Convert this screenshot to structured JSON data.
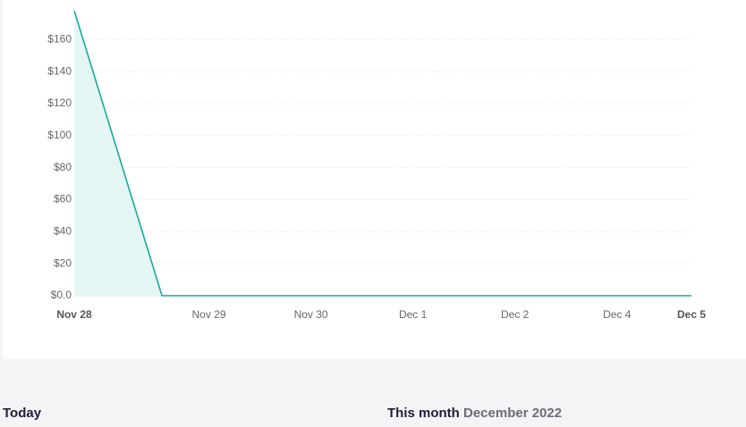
{
  "chart_data": {
    "type": "area",
    "x": [
      0,
      0.86,
      6.05
    ],
    "values": [
      178,
      0,
      0
    ],
    "color": "#17aa9c",
    "fill": "#e3f6f3",
    "xlim": [
      0,
      6.05
    ],
    "xticks": [
      {
        "value": 0,
        "label": "Nov 28"
      },
      {
        "value": 1.32,
        "label": "Nov 29"
      },
      {
        "value": 2.32,
        "label": "Nov 30"
      },
      {
        "value": 3.32,
        "label": "Dec 1"
      },
      {
        "value": 4.32,
        "label": "Dec 2"
      },
      {
        "value": 5.32,
        "label": "Dec 4"
      },
      {
        "value": 6.05,
        "label": "Dec 5"
      }
    ],
    "ylim": [
      0,
      178
    ],
    "yticks": [
      {
        "value": 0,
        "label": "$0.0"
      },
      {
        "value": 20,
        "label": "$20"
      },
      {
        "value": 40,
        "label": "$40"
      },
      {
        "value": 60,
        "label": "$60"
      },
      {
        "value": 80,
        "label": "$80"
      },
      {
        "value": 100,
        "label": "$100"
      },
      {
        "value": 120,
        "label": "$120"
      },
      {
        "value": 140,
        "label": "$140"
      },
      {
        "value": 160,
        "label": "$160"
      }
    ],
    "grid": true
  },
  "summary": {
    "today": "Today",
    "this_month": "This month",
    "month": "December 2022"
  }
}
